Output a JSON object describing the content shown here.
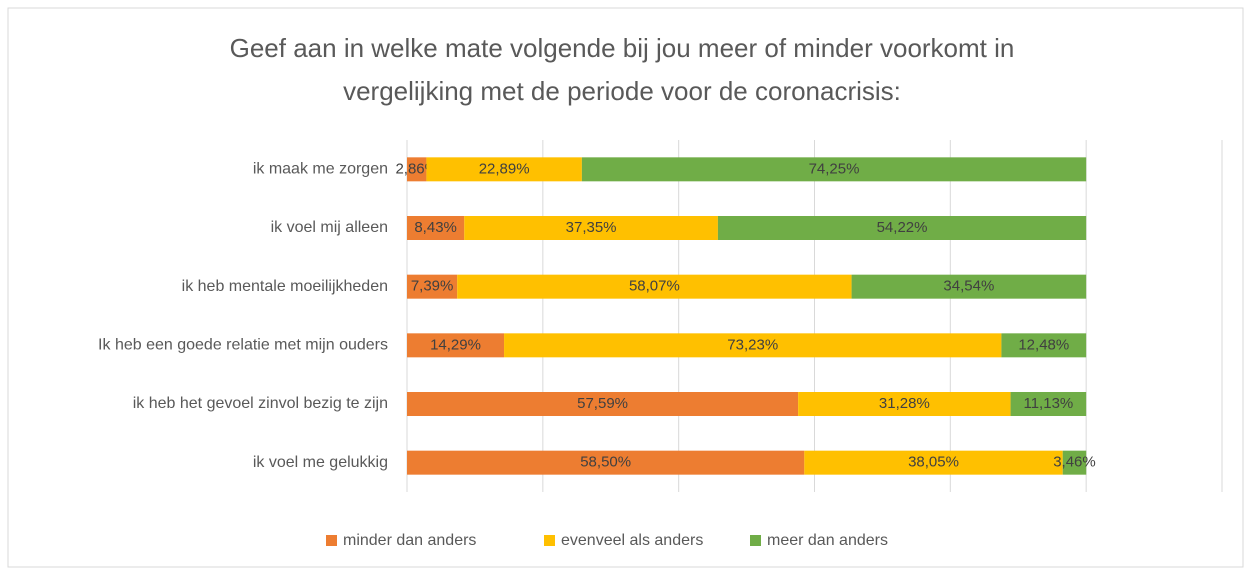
{
  "chart_data": {
    "type": "stacked_barh",
    "title": "Geef aan in welke mate volgende bij jou meer of minder voorkomt in vergelijking met de periode voor de coronacrisis:",
    "categories": [
      "ik maak me zorgen",
      "ik voel mij alleen",
      "ik heb mentale moeilijkheden",
      "Ik heb een goede relatie met mijn ouders",
      "ik heb het gevoel zinvol bezig te zijn",
      "ik voel me gelukkig"
    ],
    "series": [
      {
        "name": "minder dan anders",
        "color": "#ed7d31",
        "values": [
          2.86,
          8.43,
          7.39,
          14.29,
          57.59,
          58.5
        ],
        "value_labels": [
          "2,86%",
          "8,43%",
          "7,39%",
          "14,29%",
          "57,59%",
          "58,50%"
        ]
      },
      {
        "name": "evenveel als anders",
        "color": "#ffc000",
        "values": [
          22.89,
          37.35,
          58.07,
          73.23,
          31.28,
          38.05
        ],
        "value_labels": [
          "22,89%",
          "37,35%",
          "58,07%",
          "73,23%",
          "31,28%",
          "38,05%"
        ]
      },
      {
        "name": "meer dan anders",
        "color": "#70ad47",
        "values": [
          74.25,
          54.22,
          34.54,
          12.48,
          11.13,
          3.46
        ],
        "value_labels": [
          "74,25%",
          "54,22%",
          "34,54%",
          "12,48%",
          "11,13%",
          "3,46%"
        ]
      }
    ],
    "xlim": [
      0,
      120
    ],
    "xticks": [
      0,
      20,
      40,
      60,
      80,
      100,
      120
    ],
    "grid": true,
    "legend": "bottom"
  }
}
